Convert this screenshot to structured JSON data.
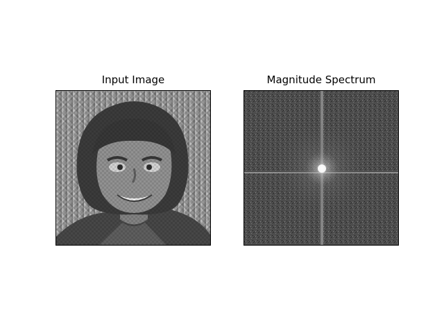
{
  "figure": {
    "panels": [
      {
        "title": "Input Image",
        "content": "grayscale photo of a smiling child with bowl-cut hair and checkered periodic noise pattern"
      },
      {
        "title": "Magnitude Spectrum",
        "content": "grayscale noisy FFT magnitude spectrum with bright center and cross-shaped vertical and horizontal lines"
      }
    ],
    "colors": {
      "background": "#ffffff",
      "frame_border": "#000000"
    }
  }
}
